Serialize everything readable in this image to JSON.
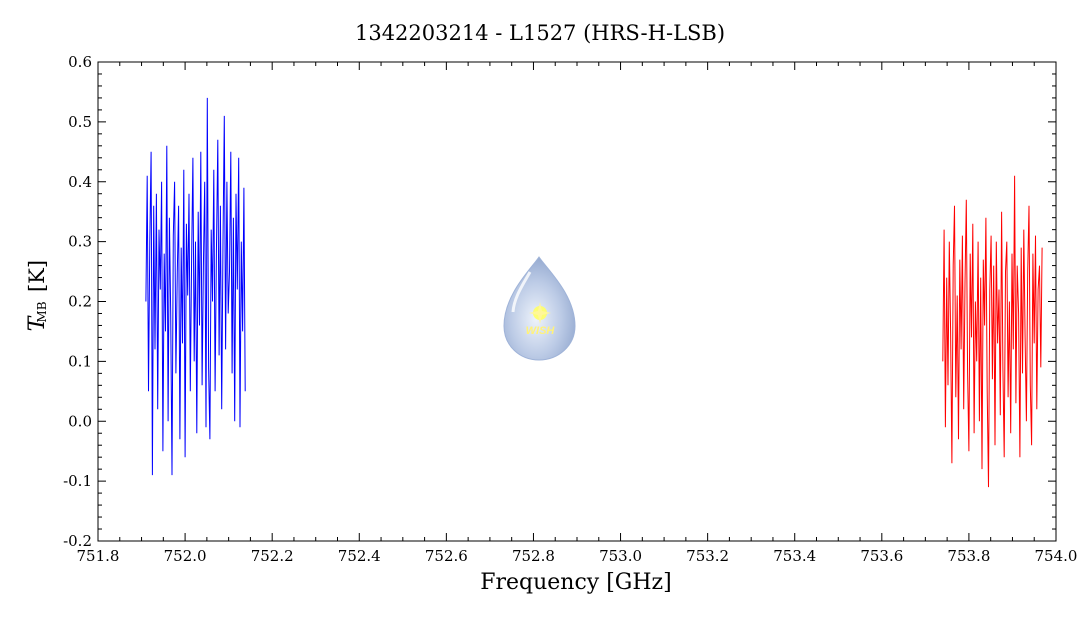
{
  "chart_data": {
    "type": "line",
    "title": "1342203214 - L1527 (HRS-H-LSB)",
    "xlabel": "Frequency [GHz]",
    "ylabel_main": "T",
    "ylabel_sub": "MB",
    "ylabel_unit": "[K]",
    "xlim": [
      751.8,
      754.0
    ],
    "ylim": [
      -0.2,
      0.6
    ],
    "xticks": [
      751.8,
      752.0,
      752.2,
      752.4,
      752.6,
      752.8,
      753.0,
      753.2,
      753.4,
      753.6,
      753.8,
      754.0
    ],
    "xtick_labels": [
      "751.8",
      "752.0",
      "752.2",
      "752.4",
      "752.6",
      "752.8",
      "753.0",
      "753.2",
      "753.4",
      "753.6",
      "753.8",
      "754.0"
    ],
    "yticks": [
      -0.2,
      -0.1,
      0.0,
      0.1,
      0.2,
      0.3,
      0.4,
      0.5,
      0.6
    ],
    "ytick_labels": [
      "-0.2",
      "-0.1",
      "0.0",
      "0.1",
      "0.2",
      "0.3",
      "0.4",
      "0.5",
      "0.6"
    ],
    "grid": false,
    "series": [
      {
        "color": "#0000ff",
        "x": [
          751.91,
          751.913,
          751.916,
          751.919,
          751.922,
          751.925,
          751.928,
          751.931,
          751.934,
          751.937,
          751.94,
          751.943,
          751.946,
          751.949,
          751.952,
          751.955,
          751.958,
          751.961,
          751.964,
          751.967,
          751.97,
          751.973,
          751.976,
          751.979,
          751.982,
          751.985,
          751.988,
          751.991,
          751.994,
          751.997,
          752.0,
          752.003,
          752.006,
          752.009,
          752.012,
          752.015,
          752.018,
          752.021,
          752.024,
          752.027,
          752.03,
          752.033,
          752.036,
          752.039,
          752.042,
          752.045,
          752.048,
          752.051,
          752.054,
          752.057,
          752.06,
          752.063,
          752.066,
          752.069,
          752.072,
          752.075,
          752.078,
          752.081,
          752.084,
          752.087,
          752.09,
          752.093,
          752.096,
          752.099,
          752.102,
          752.105,
          752.108,
          752.111,
          752.114,
          752.117,
          752.12,
          752.123,
          752.126,
          752.129,
          752.132,
          752.135,
          752.138
        ],
        "y": [
          0.2,
          0.41,
          0.05,
          0.3,
          0.45,
          -0.09,
          0.36,
          0.12,
          0.38,
          0.02,
          0.32,
          0.22,
          0.4,
          -0.05,
          0.28,
          0.15,
          0.46,
          0.0,
          0.34,
          0.18,
          -0.09,
          0.31,
          0.4,
          0.08,
          0.25,
          0.36,
          -0.03,
          0.29,
          0.13,
          0.42,
          -0.06,
          0.33,
          0.21,
          0.38,
          0.05,
          0.27,
          0.44,
          0.1,
          0.3,
          -0.02,
          0.35,
          0.16,
          0.45,
          0.06,
          0.26,
          0.4,
          -0.01,
          0.54,
          0.09,
          -0.03,
          0.32,
          0.2,
          0.42,
          0.05,
          0.28,
          0.47,
          0.11,
          0.36,
          0.02,
          0.3,
          0.51,
          0.12,
          0.4,
          0.18,
          0.25,
          0.45,
          0.08,
          0.34,
          0.0,
          0.38,
          0.22,
          0.44,
          -0.01,
          0.3,
          0.15,
          0.39,
          0.05
        ]
      },
      {
        "color": "#ff0000",
        "x": [
          753.74,
          753.743,
          753.746,
          753.749,
          753.752,
          753.755,
          753.758,
          753.761,
          753.764,
          753.767,
          753.77,
          753.773,
          753.776,
          753.779,
          753.782,
          753.785,
          753.788,
          753.791,
          753.794,
          753.797,
          753.8,
          753.803,
          753.806,
          753.809,
          753.812,
          753.815,
          753.818,
          753.821,
          753.824,
          753.827,
          753.83,
          753.833,
          753.836,
          753.839,
          753.842,
          753.845,
          753.848,
          753.851,
          753.854,
          753.857,
          753.86,
          753.863,
          753.866,
          753.869,
          753.872,
          753.875,
          753.878,
          753.881,
          753.884,
          753.887,
          753.89,
          753.893,
          753.896,
          753.899,
          753.902,
          753.905,
          753.908,
          753.911,
          753.914,
          753.917,
          753.92,
          753.923,
          753.926,
          753.929,
          753.932,
          753.935,
          753.938,
          753.941,
          753.944,
          753.947,
          753.95,
          753.953,
          753.956,
          753.959,
          753.962,
          753.965,
          753.968
        ],
        "y": [
          0.1,
          0.32,
          -0.01,
          0.24,
          0.06,
          0.3,
          0.15,
          -0.07,
          0.26,
          0.36,
          0.04,
          0.21,
          -0.03,
          0.27,
          0.12,
          0.31,
          0.02,
          0.23,
          0.37,
          0.08,
          -0.05,
          0.28,
          0.14,
          0.33,
          -0.02,
          0.2,
          0.1,
          0.3,
          0.0,
          0.24,
          -0.08,
          0.27,
          0.16,
          0.34,
          0.05,
          -0.11,
          0.22,
          0.31,
          0.07,
          0.26,
          -0.04,
          0.3,
          0.13,
          0.22,
          0.01,
          0.35,
          0.09,
          -0.06,
          0.25,
          0.3,
          0.04,
          0.2,
          -0.02,
          0.28,
          0.12,
          0.41,
          0.03,
          0.26,
          0.18,
          -0.06,
          0.29,
          0.08,
          0.32,
          0.14,
          0.0,
          0.25,
          0.36,
          0.06,
          -0.04,
          0.28,
          0.13,
          0.31,
          0.02,
          0.22,
          0.26,
          0.09,
          0.29
        ]
      }
    ]
  },
  "logo": {
    "text": "WISH",
    "color": "#c4d4ee"
  }
}
